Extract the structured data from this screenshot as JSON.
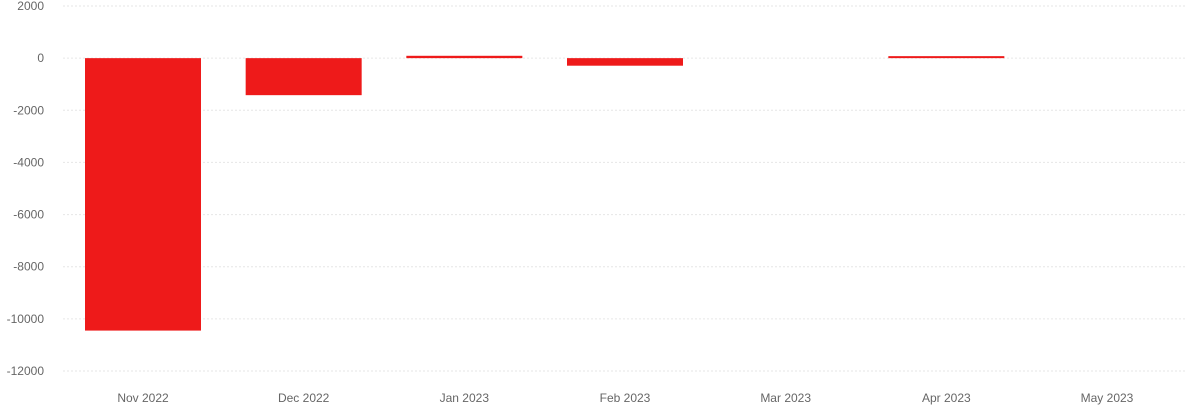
{
  "chart_data": {
    "type": "bar",
    "title": "",
    "xlabel": "",
    "ylabel": "",
    "categories": [
      "Nov 2022",
      "Dec 2022",
      "Jan 2023",
      "Feb 2023",
      "Mar 2023",
      "Apr 2023",
      "May 2023"
    ],
    "values": [
      -10450,
      -1420,
      90,
      -290,
      0,
      40,
      0
    ],
    "ylim": [
      -12000,
      2000
    ],
    "yticks": [
      2000,
      0,
      -2000,
      -4000,
      -6000,
      -8000,
      -10000,
      -12000
    ],
    "grid": true,
    "grid_style": "dotted",
    "legend": "none",
    "colors": {
      "bar": "#ee1a1a",
      "grid": "#e6e6e6",
      "tick_text": "#666666"
    }
  }
}
